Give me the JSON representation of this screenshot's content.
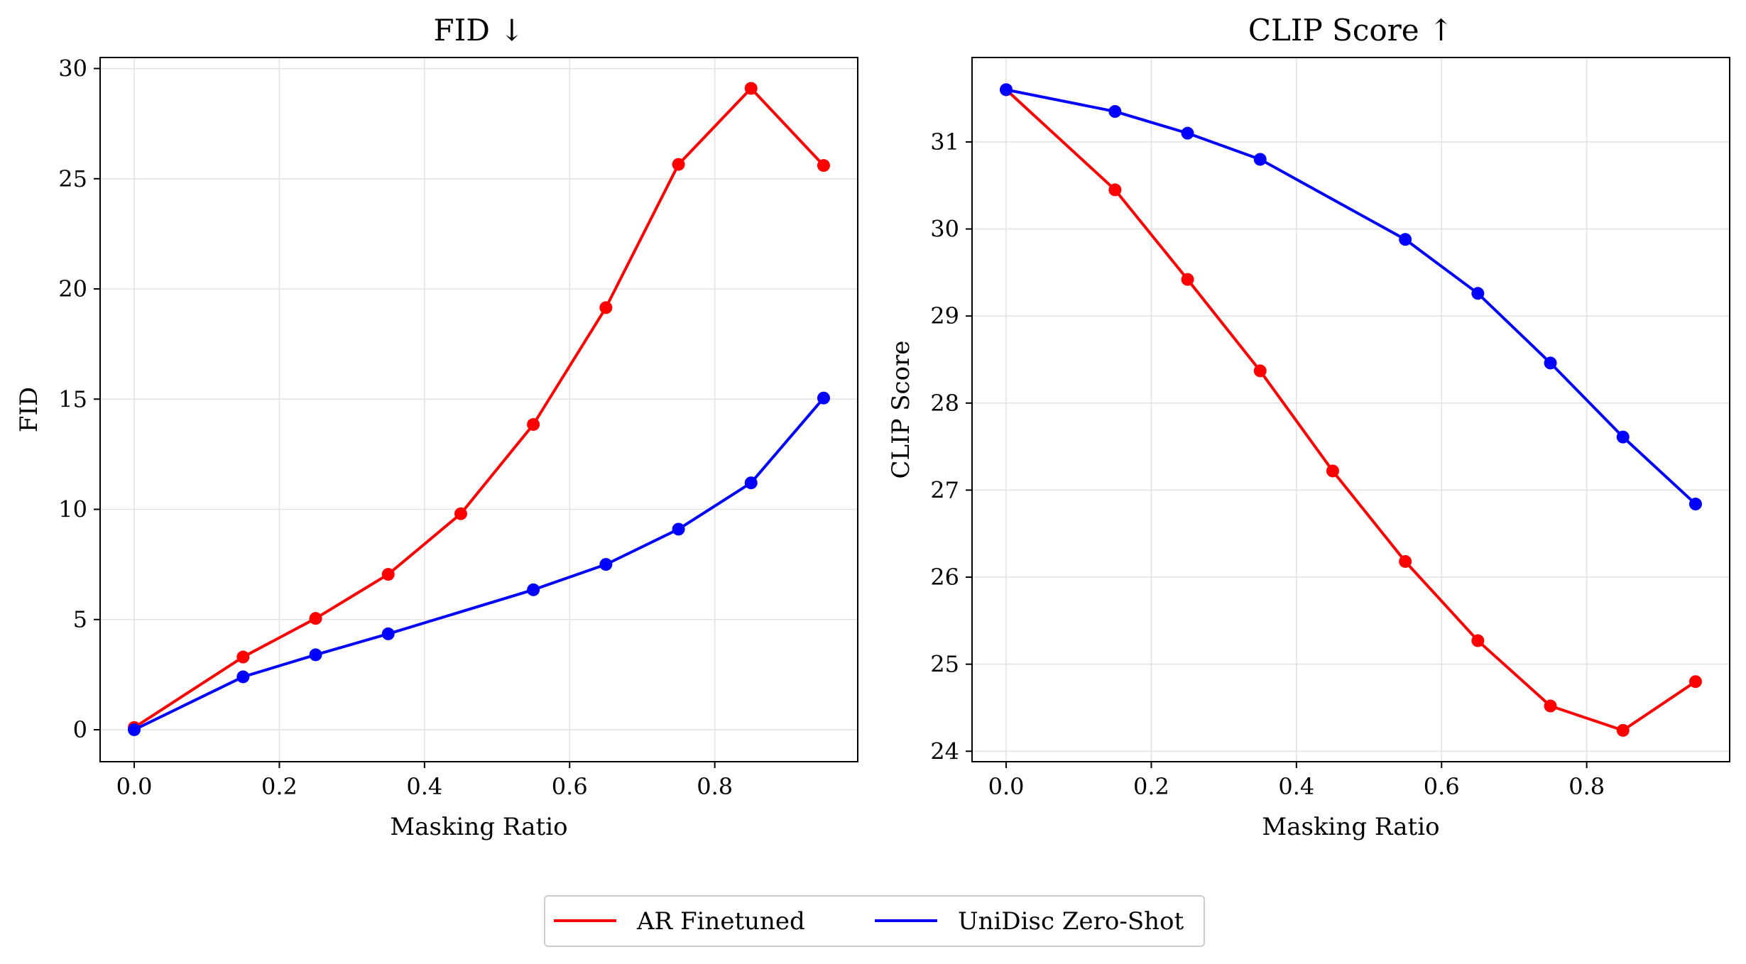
{
  "legend": {
    "items": [
      {
        "label": "AR Finetuned",
        "color": "#ff0000"
      },
      {
        "label": "UniDisc Zero-Shot",
        "color": "#0000ff"
      }
    ],
    "placement": "bottom-center"
  },
  "chart_data": [
    {
      "type": "line",
      "title": "FID ↓",
      "xlabel": "Masking Ratio",
      "ylabel": "FID",
      "xlim": [
        -0.047,
        0.997
      ],
      "ylim": [
        -1.45,
        30.5
      ],
      "xticks": [
        0.0,
        0.2,
        0.4,
        0.6,
        0.8
      ],
      "xtick_labels": [
        "0.0",
        "0.2",
        "0.4",
        "0.6",
        "0.8"
      ],
      "yticks": [
        0,
        5,
        10,
        15,
        20,
        25,
        30
      ],
      "ytick_labels": [
        "0",
        "5",
        "10",
        "15",
        "20",
        "25",
        "30"
      ],
      "grid": true,
      "series": [
        {
          "name": "AR Finetuned",
          "color": "#ff0000",
          "x": [
            0.0,
            0.15,
            0.25,
            0.35,
            0.45,
            0.55,
            0.65,
            0.75,
            0.85,
            0.95
          ],
          "y": [
            0.1,
            3.3,
            5.05,
            7.05,
            9.8,
            13.85,
            19.15,
            25.65,
            29.1,
            25.6
          ]
        },
        {
          "name": "UniDisc Zero-Shot",
          "color": "#0000ff",
          "x": [
            0.0,
            0.15,
            0.25,
            0.35,
            0.55,
            0.65,
            0.75,
            0.85,
            0.95
          ],
          "y": [
            0.0,
            2.4,
            3.4,
            4.35,
            6.35,
            7.5,
            9.1,
            11.2,
            15.05
          ]
        }
      ]
    },
    {
      "type": "line",
      "title": "CLIP Score ↑",
      "xlabel": "Masking Ratio",
      "ylabel": "CLIP Score",
      "xlim": [
        -0.047,
        0.997
      ],
      "ylim": [
        23.88,
        31.97
      ],
      "xticks": [
        0.0,
        0.2,
        0.4,
        0.6,
        0.8
      ],
      "xtick_labels": [
        "0.0",
        "0.2",
        "0.4",
        "0.6",
        "0.8"
      ],
      "yticks": [
        24,
        25,
        26,
        27,
        28,
        29,
        30,
        31
      ],
      "ytick_labels": [
        "24",
        "25",
        "26",
        "27",
        "28",
        "29",
        "30",
        "31"
      ],
      "grid": true,
      "series": [
        {
          "name": "AR Finetuned",
          "color": "#ff0000",
          "x": [
            0.0,
            0.15,
            0.25,
            0.35,
            0.45,
            0.55,
            0.65,
            0.75,
            0.85,
            0.95
          ],
          "y": [
            31.6,
            30.45,
            29.42,
            28.37,
            27.22,
            26.18,
            25.27,
            24.52,
            24.24,
            24.8
          ]
        },
        {
          "name": "UniDisc Zero-Shot",
          "color": "#0000ff",
          "x": [
            0.0,
            0.15,
            0.25,
            0.35,
            0.55,
            0.65,
            0.75,
            0.85,
            0.95
          ],
          "y": [
            31.6,
            31.35,
            31.1,
            30.8,
            29.88,
            29.26,
            28.46,
            27.61,
            26.84
          ]
        }
      ]
    }
  ]
}
